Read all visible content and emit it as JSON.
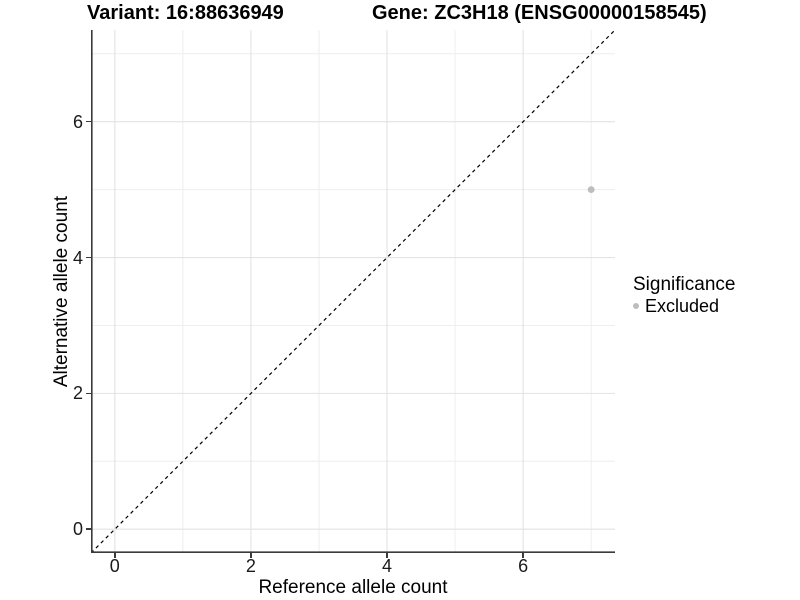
{
  "header": {
    "variant_title": "Variant: 16:88636949",
    "gene_title": "Gene: ZC3H18 (ENSG00000158545)"
  },
  "chart_data": {
    "type": "scatter",
    "title_left": "Variant: 16:88636949",
    "title_right": "Gene: ZC3H18 (ENSG00000158545)",
    "xlabel": "Reference allele count",
    "ylabel": "Alternative allele count",
    "xlim": [
      -0.35,
      7.35
    ],
    "ylim": [
      -0.35,
      7.35
    ],
    "x_ticks": [
      0,
      2,
      4,
      6
    ],
    "y_ticks": [
      0,
      2,
      4,
      6
    ],
    "x_minor_ticks": [
      1,
      3,
      5,
      7
    ],
    "y_minor_ticks": [
      1,
      3,
      5,
      7
    ],
    "grid": "major and minor gridlines on white background",
    "legend_position": "right",
    "series": [
      {
        "name": "Excluded",
        "color": "#bdbdbd",
        "points": [
          {
            "x": 7,
            "y": 5
          }
        ]
      }
    ],
    "reference_line": {
      "type": "identity y=x",
      "from": [
        -0.35,
        -0.35
      ],
      "to": [
        7.35,
        7.35
      ],
      "style": "dashed",
      "color": "#000000"
    },
    "legend": {
      "title": "Significance",
      "items": [
        {
          "label": "Excluded",
          "color": "#bdbdbd"
        }
      ]
    },
    "colors": {
      "background": "#ffffff",
      "grid_major": "#e3e3e3",
      "grid_minor": "#eeeeee",
      "axis_line": "#3a3a3a",
      "tick_label": "#1a1a1a",
      "point": "#bdbdbd"
    }
  }
}
